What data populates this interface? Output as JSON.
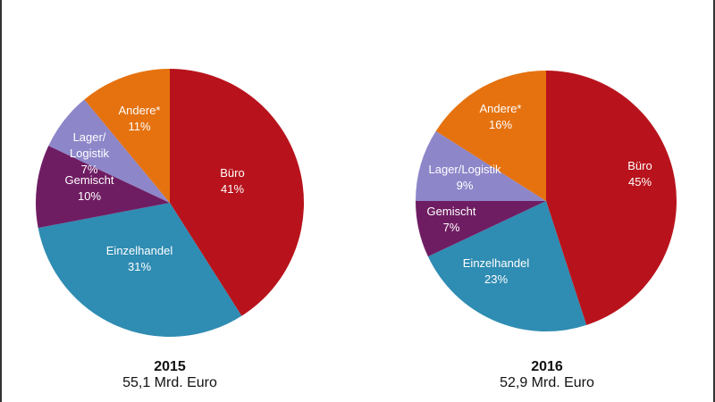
{
  "chart_data": [
    {
      "type": "pie",
      "title": "2015",
      "subtitle": "55,1 Mrd. Euro",
      "categories": [
        "Büro",
        "Einzelhandel",
        "Gemischt",
        "Lager/Logistik",
        "Andere*"
      ],
      "labels": [
        [
          "Büro"
        ],
        [
          "Einzelhandel"
        ],
        [
          "Gemischt"
        ],
        [
          "Lager/",
          "Logistik"
        ],
        [
          "Andere*"
        ]
      ],
      "values": [
        41,
        31,
        10,
        7,
        11
      ],
      "value_labels": [
        "41%",
        "31%",
        "10%",
        "7%",
        "11%"
      ]
    },
    {
      "type": "pie",
      "title": "2016",
      "subtitle": "52,9 Mrd. Euro",
      "categories": [
        "Büro",
        "Einzelhandel",
        "Gemischt",
        "Lager/Logistik",
        "Andere*"
      ],
      "labels": [
        [
          "Büro"
        ],
        [
          "Einzelhandel"
        ],
        [
          "Gemischt"
        ],
        [
          "Lager/Logistik"
        ],
        [
          "Andere*"
        ]
      ],
      "values": [
        45,
        23,
        7,
        9,
        16
      ],
      "value_labels": [
        "45%",
        "23%",
        "7%",
        "9%",
        "16%"
      ]
    }
  ],
  "colors": {
    "Büro": "#b8131c",
    "Einzelhandel": "#2f8cb2",
    "Gemischt": "#6f1d63",
    "Lager/Logistik": "#8d86c9",
    "Andere*": "#e5720f"
  }
}
